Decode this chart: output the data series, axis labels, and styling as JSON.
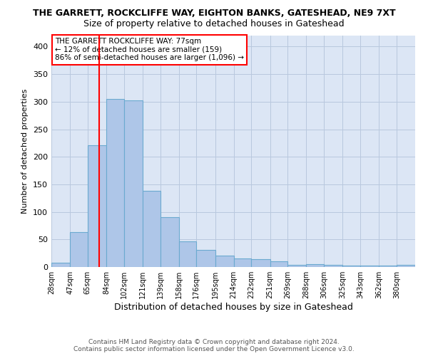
{
  "title": "THE GARRETT, ROCKCLIFFE WAY, EIGHTON BANKS, GATESHEAD, NE9 7XT",
  "subtitle": "Size of property relative to detached houses in Gateshead",
  "xlabel": "Distribution of detached houses by size in Gateshead",
  "ylabel": "Number of detached properties",
  "bar_color": "#aec6e8",
  "bar_edge_color": "#6baad0",
  "grid_color": "#b8c8de",
  "background_color": "#dce6f5",
  "property_line_x": 77,
  "property_line_color": "red",
  "bins": [
    28,
    47,
    65,
    84,
    102,
    121,
    139,
    158,
    176,
    195,
    214,
    232,
    251,
    269,
    288,
    306,
    325,
    343,
    362,
    380,
    399
  ],
  "values": [
    8,
    63,
    221,
    305,
    302,
    138,
    90,
    46,
    31,
    21,
    15,
    14,
    10,
    4,
    5,
    4,
    2,
    3,
    2,
    4
  ],
  "ylim": [
    0,
    420
  ],
  "yticks": [
    0,
    50,
    100,
    150,
    200,
    250,
    300,
    350,
    400
  ],
  "annotation_text": "THE GARRETT ROCKCLIFFE WAY: 77sqm\n← 12% of detached houses are smaller (159)\n86% of semi-detached houses are larger (1,096) →",
  "annotation_box_color": "white",
  "annotation_box_edge_color": "red",
  "footer_line1": "Contains HM Land Registry data © Crown copyright and database right 2024.",
  "footer_line2": "Contains public sector information licensed under the Open Government Licence v3.0.",
  "title_fontsize": 9,
  "subtitle_fontsize": 9,
  "xlabel_fontsize": 9,
  "ylabel_fontsize": 8,
  "tick_fontsize": 7,
  "annotation_fontsize": 7.5,
  "footer_fontsize": 6.5
}
